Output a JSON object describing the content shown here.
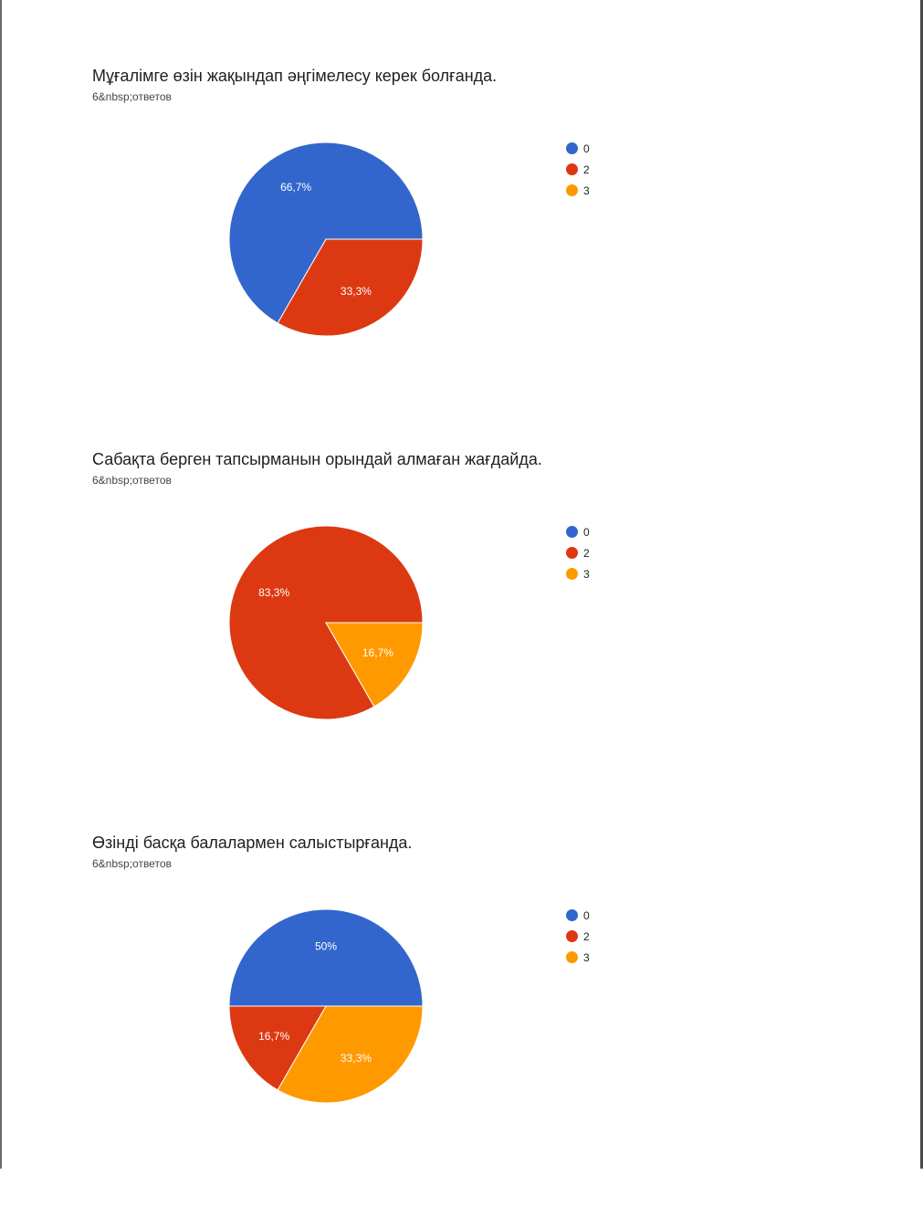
{
  "colors": {
    "0": "#3366cc",
    "2": "#dc3912",
    "3": "#ff9900"
  },
  "chart_data": [
    {
      "type": "pie",
      "title": "Мұғалімге өзін жақындап әңгімелесу керек болғанда.",
      "subtitle": "6&nbsp;ответов",
      "legend": [
        "0",
        "2",
        "3"
      ],
      "legend_position": "right",
      "slices": [
        {
          "label": "0",
          "value": 66.7,
          "text": "66,7%"
        },
        {
          "label": "2",
          "value": 33.3,
          "text": "33,3%"
        },
        {
          "label": "3",
          "value": 0,
          "text": ""
        }
      ]
    },
    {
      "type": "pie",
      "title": "Сабақта берген тапсырманын орындай алмаған жағдайда.",
      "subtitle": "6&nbsp;ответов",
      "legend": [
        "0",
        "2",
        "3"
      ],
      "legend_position": "right",
      "slices": [
        {
          "label": "0",
          "value": 0,
          "text": ""
        },
        {
          "label": "2",
          "value": 83.3,
          "text": "83,3%"
        },
        {
          "label": "3",
          "value": 16.7,
          "text": "16,7%"
        }
      ]
    },
    {
      "type": "pie",
      "title": "Өзінді басқа балалармен салыстырғанда.",
      "subtitle": "6&nbsp;ответов",
      "legend": [
        "0",
        "2",
        "3"
      ],
      "legend_position": "right",
      "slices": [
        {
          "label": "0",
          "value": 50,
          "text": "50%"
        },
        {
          "label": "2",
          "value": 16.7,
          "text": "16,7%"
        },
        {
          "label": "3",
          "value": 33.3,
          "text": "33,3%"
        }
      ]
    }
  ]
}
